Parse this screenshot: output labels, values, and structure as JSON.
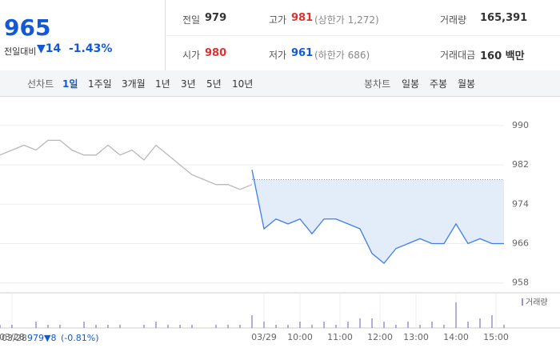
{
  "header": {
    "price": "965",
    "change_label": "전일대비",
    "change": "▼14",
    "change_pct": "-1.43%",
    "stats": [
      [
        "전일",
        "979",
        ""
      ],
      [
        "고가",
        "981",
        "(상한가 1,272)"
      ],
      [
        "거래량",
        "165,391",
        ""
      ],
      [
        "시가",
        "980",
        ""
      ],
      [
        "저가",
        "961",
        "(하한가 686)"
      ],
      [
        "거래대금",
        "160 백만",
        ""
      ]
    ]
  },
  "tabs": {
    "line_label": "선차트",
    "line_items": [
      "1일",
      "1주일",
      "3개월",
      "1년",
      "3년",
      "5년",
      "10년"
    ],
    "candle_label": "봉차트",
    "candle_items": [
      "일봉",
      "주봉",
      "월봉"
    ]
  },
  "footer": {
    "date": "03/28",
    "close": "979",
    "change": "▼8",
    "pct": "(-0.81%)"
  },
  "chart_data": {
    "type": "line",
    "x": [
      0,
      3,
      6,
      9,
      12,
      15,
      18,
      21,
      24,
      27,
      30,
      33,
      36,
      39,
      42,
      45,
      48,
      51,
      54,
      57,
      60,
      63,
      66,
      69,
      72,
      75,
      78,
      81,
      84,
      87,
      90,
      93,
      96,
      99,
      102,
      105,
      108,
      111,
      114,
      117,
      120,
      123,
      126
    ],
    "xlim": [
      0,
      126
    ],
    "ylim": [
      956,
      996
    ],
    "yticks": [
      958,
      966,
      974,
      982,
      990
    ],
    "reference": 979,
    "xticks": [
      {
        "value": 3,
        "label": "03/28"
      },
      {
        "value": 66,
        "label": "03/29"
      },
      {
        "value": 75,
        "label": "10:00"
      },
      {
        "value": 85,
        "label": "11:00"
      },
      {
        "value": 95,
        "label": "12:00"
      },
      {
        "value": 104,
        "label": "13:00"
      },
      {
        "value": 114,
        "label": "14:00"
      },
      {
        "value": 124,
        "label": "15:00"
      }
    ],
    "series": [
      {
        "color": "#b8b8b8",
        "values": [
          984,
          985,
          986,
          985,
          987,
          987,
          985,
          984,
          984,
          986,
          984,
          985,
          983,
          986,
          984,
          982,
          980,
          979,
          978,
          978,
          977,
          978,
          null,
          null,
          null,
          null,
          null,
          null,
          null,
          null,
          null,
          null,
          null,
          null,
          null,
          null,
          null,
          null,
          null,
          null,
          null,
          null,
          null
        ]
      },
      {
        "color": "#3f7ee8",
        "values": [
          null,
          null,
          null,
          null,
          null,
          null,
          null,
          null,
          null,
          null,
          null,
          null,
          null,
          null,
          null,
          null,
          null,
          null,
          null,
          null,
          null,
          981,
          969,
          971,
          970,
          971,
          968,
          971,
          971,
          970,
          969,
          964,
          962,
          965,
          966,
          967,
          966,
          966,
          970,
          966,
          967,
          966,
          966
        ]
      }
    ],
    "volume": {
      "name": "거래량",
      "color": "#9b8fd6",
      "ylim": [
        0,
        10
      ],
      "values": [
        1,
        1,
        0,
        2,
        1,
        1,
        0,
        2,
        1,
        1,
        1,
        0,
        1,
        2,
        1,
        1,
        1,
        0,
        1,
        1,
        1,
        4,
        2,
        1,
        1,
        2,
        1,
        2,
        1,
        2,
        3,
        3,
        2,
        1,
        2,
        1,
        2,
        1,
        8,
        2,
        3,
        4,
        1
      ]
    }
  }
}
